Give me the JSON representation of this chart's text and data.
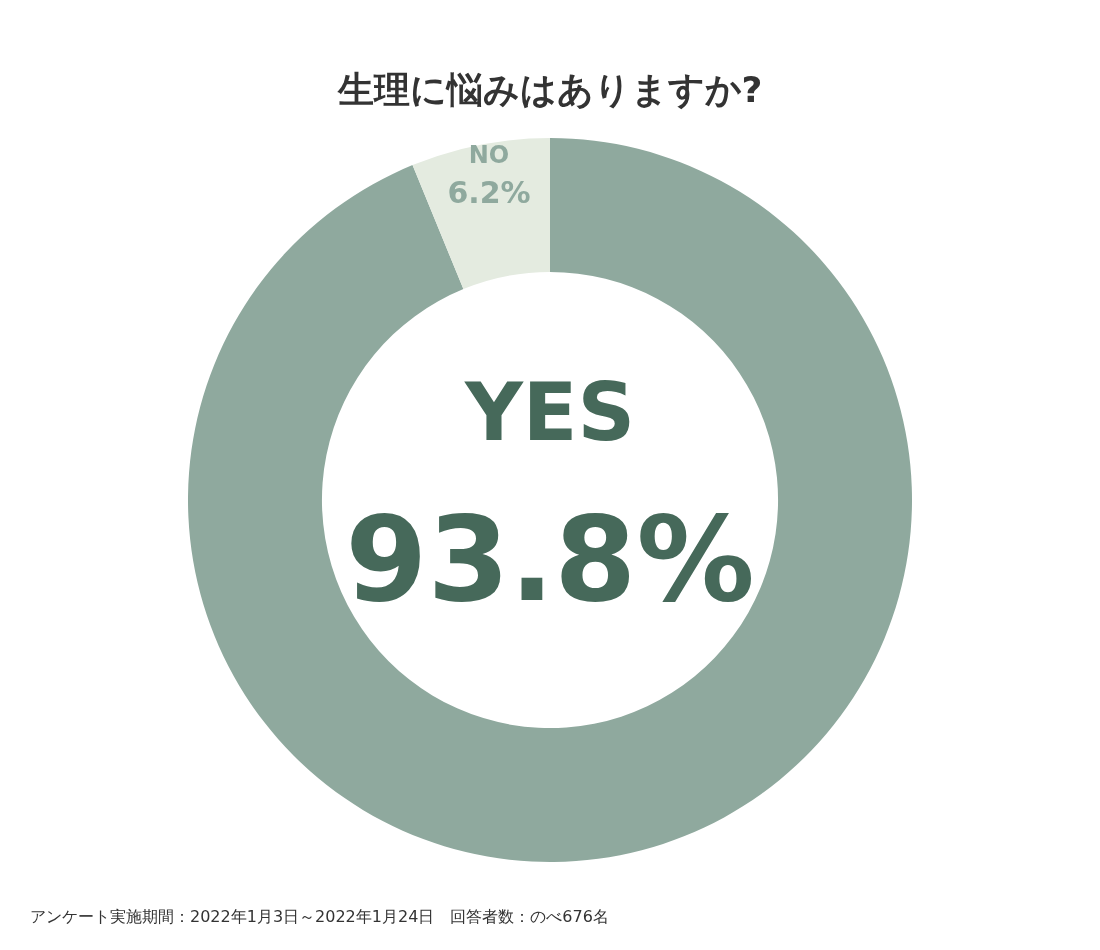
{
  "chart_data": {
    "type": "donut",
    "title": "生理に悩みはありますか?",
    "categories": [
      "YES",
      "NO"
    ],
    "values": [
      93.8,
      6.2
    ],
    "colors": [
      "#8fa99e",
      "#e4ebe0"
    ],
    "value_labels": [
      "93.8%",
      "6.2%"
    ],
    "annotations": [
      "アンケート実施期間：2022年1月3日～2022年1月24日　回答者数：のべ676名"
    ]
  }
}
